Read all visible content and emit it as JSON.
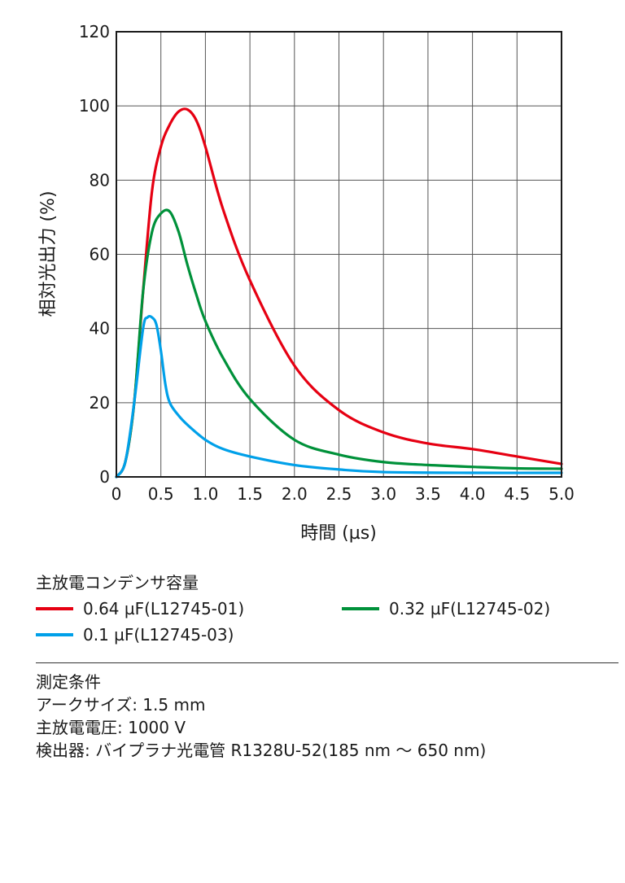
{
  "chart_data": {
    "type": "line",
    "xlabel": "時間 (µs)",
    "ylabel": "相対光出力 (%)",
    "xlim": [
      0,
      5.0
    ],
    "ylim": [
      0,
      120
    ],
    "x_ticks": [
      "0",
      "0.5",
      "1.0",
      "1.5",
      "2.0",
      "2.5",
      "3.0",
      "3.5",
      "4.0",
      "4.5",
      "5.0"
    ],
    "y_ticks": [
      "0",
      "20",
      "40",
      "60",
      "80",
      "100",
      "120"
    ],
    "grid": true,
    "series": [
      {
        "name": "0.64 µF(L12745-01)",
        "color": "#e60012",
        "x": [
          0,
          0.1,
          0.2,
          0.3,
          0.4,
          0.5,
          0.6,
          0.7,
          0.8,
          0.9,
          1.0,
          1.2,
          1.5,
          2.0,
          2.5,
          3.0,
          3.5,
          4.0,
          4.5,
          5.0
        ],
        "y": [
          0,
          4,
          20,
          50,
          77,
          89,
          95,
          98.5,
          99,
          96,
          89,
          72,
          53,
          30,
          18,
          12,
          9,
          7.5,
          5.5,
          3.5
        ]
      },
      {
        "name": "0.32 µF(L12745-02)",
        "color": "#00913a",
        "x": [
          0,
          0.1,
          0.2,
          0.3,
          0.4,
          0.5,
          0.6,
          0.7,
          0.8,
          0.9,
          1.0,
          1.2,
          1.5,
          2.0,
          2.5,
          3.0,
          3.5,
          4.0,
          4.5,
          5.0
        ],
        "y": [
          0,
          4,
          20,
          50,
          66,
          71,
          71.5,
          66,
          57,
          49,
          42,
          32,
          21,
          10,
          6,
          4,
          3.2,
          2.7,
          2.3,
          2.2
        ]
      },
      {
        "name": "0.1 µF(L12745-03)",
        "color": "#00a0e9",
        "x": [
          0,
          0.1,
          0.2,
          0.3,
          0.35,
          0.4,
          0.45,
          0.5,
          0.55,
          0.6,
          0.7,
          0.8,
          1.0,
          1.2,
          1.5,
          2.0,
          2.5,
          3.0,
          4.0,
          5.0
        ],
        "y": [
          0,
          4,
          20,
          40,
          43,
          43,
          41,
          34,
          25,
          20,
          16.5,
          14,
          10,
          7.5,
          5.5,
          3.2,
          2,
          1.3,
          1.1,
          1.1
        ]
      }
    ]
  },
  "legend": {
    "title": "主放電コンデンサ容量",
    "items": [
      "0.64 µF(L12745-01)",
      "0.32 µF(L12745-02)",
      "0.1 µF(L12745-03)"
    ]
  },
  "conditions": {
    "title": "測定条件",
    "lines": [
      "アークサイズ: 1.5 mm",
      "主放電電圧: 1000 V",
      "検出器: バイプラナ光電管 R1328U-52(185 nm ～ 650 nm)"
    ]
  }
}
